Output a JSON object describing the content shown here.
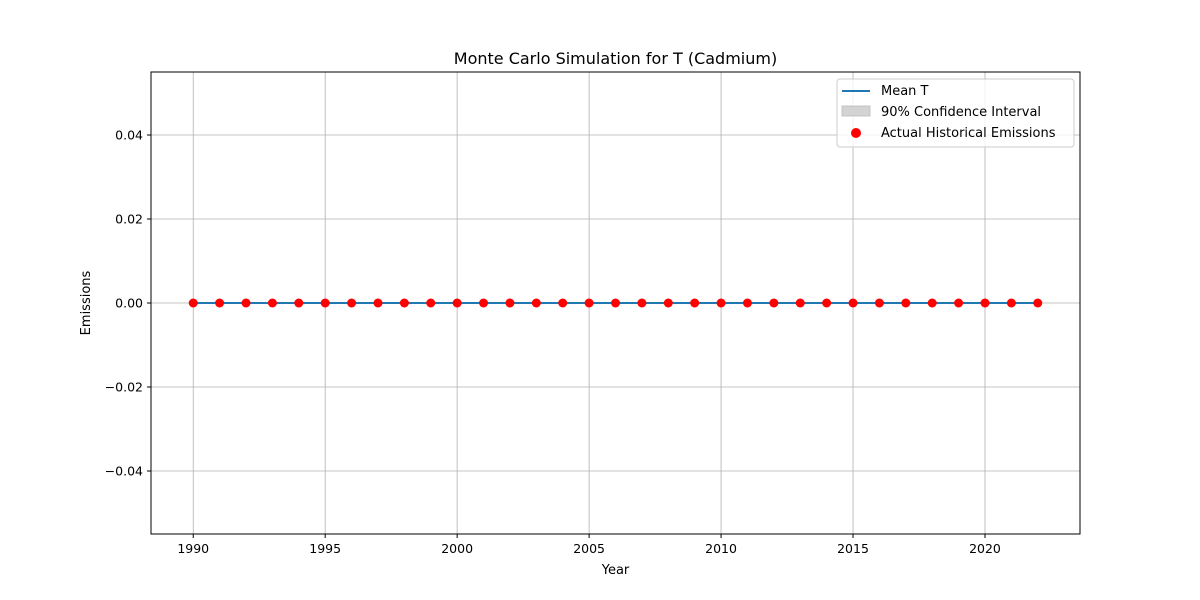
{
  "chart_data": {
    "type": "line",
    "title": "Monte Carlo Simulation for T (Cadmium)",
    "xlabel": "Year",
    "ylabel": "Emissions",
    "xlim": [
      1988.4,
      2023.6
    ],
    "ylim": [
      -0.055,
      0.055
    ],
    "xticks": [
      1990,
      1995,
      2000,
      2005,
      2010,
      2015,
      2020
    ],
    "yticks": [
      -0.04,
      -0.02,
      0.0,
      0.02,
      0.04
    ],
    "ytick_labels": [
      "−0.04",
      "−0.02",
      "0.00",
      "0.02",
      "0.04"
    ],
    "grid": true,
    "legend_position": "top-right",
    "x": [
      1990,
      1991,
      1992,
      1993,
      1994,
      1995,
      1996,
      1997,
      1998,
      1999,
      2000,
      2001,
      2002,
      2003,
      2004,
      2005,
      2006,
      2007,
      2008,
      2009,
      2010,
      2011,
      2012,
      2013,
      2014,
      2015,
      2016,
      2017,
      2018,
      2019,
      2020,
      2021,
      2022
    ],
    "series": [
      {
        "name": "Mean T",
        "kind": "line",
        "color": "#1f77b4",
        "values": [
          0,
          0,
          0,
          0,
          0,
          0,
          0,
          0,
          0,
          0,
          0,
          0,
          0,
          0,
          0,
          0,
          0,
          0,
          0,
          0,
          0,
          0,
          0,
          0,
          0,
          0,
          0,
          0,
          0,
          0,
          0,
          0,
          0
        ]
      },
      {
        "name": "90% Confidence Interval",
        "kind": "band",
        "color": "#d3d3d3",
        "lower": [
          0,
          0,
          0,
          0,
          0,
          0,
          0,
          0,
          0,
          0,
          0,
          0,
          0,
          0,
          0,
          0,
          0,
          0,
          0,
          0,
          0,
          0,
          0,
          0,
          0,
          0,
          0,
          0,
          0,
          0,
          0,
          0,
          0
        ],
        "upper": [
          0,
          0,
          0,
          0,
          0,
          0,
          0,
          0,
          0,
          0,
          0,
          0,
          0,
          0,
          0,
          0,
          0,
          0,
          0,
          0,
          0,
          0,
          0,
          0,
          0,
          0,
          0,
          0,
          0,
          0,
          0,
          0,
          0
        ]
      },
      {
        "name": "Actual Historical Emissions",
        "kind": "scatter",
        "color": "#ff0000",
        "values": [
          0,
          0,
          0,
          0,
          0,
          0,
          0,
          0,
          0,
          0,
          0,
          0,
          0,
          0,
          0,
          0,
          0,
          0,
          0,
          0,
          0,
          0,
          0,
          0,
          0,
          0,
          0,
          0,
          0,
          0,
          0,
          0,
          0
        ]
      }
    ]
  }
}
